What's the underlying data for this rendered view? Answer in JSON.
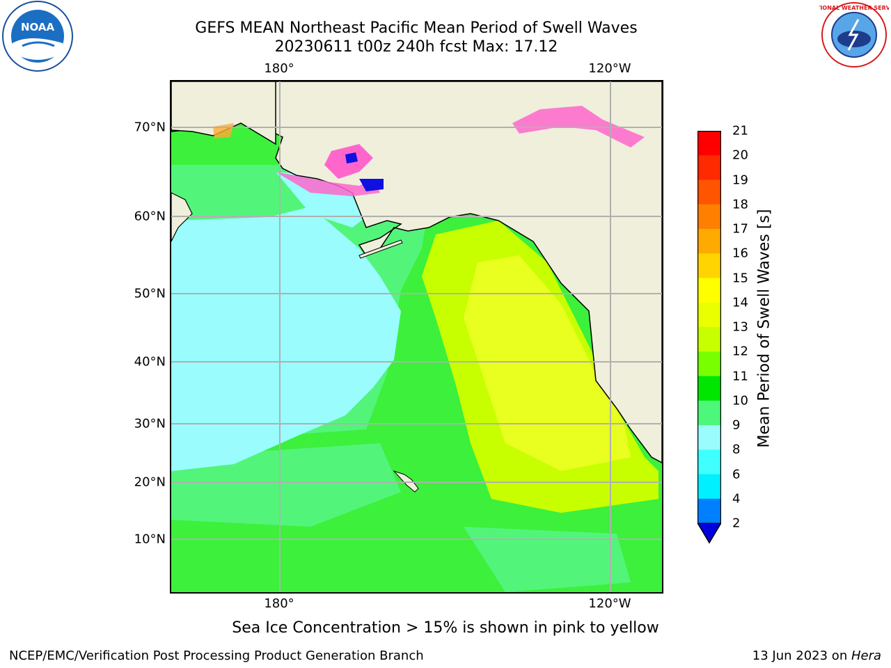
{
  "header": {
    "title_line1": "GEFS MEAN Northeast Pacific Mean Period of Swell Waves",
    "title_line2": "20230611 t00z 240h fcst   Max: 17.12"
  },
  "map": {
    "lon_labels": [
      "180°",
      "120°W"
    ],
    "lat_labels": [
      "70°N",
      "60°N",
      "50°N",
      "40°N",
      "30°N",
      "20°N",
      "10°N"
    ],
    "colors": {
      "land": "#efefdc",
      "ocean_green": "#3cf03c",
      "ocean_light_green": "#52f57a",
      "ocean_cyan": "#9afcfc",
      "ocean_yellow": "#e8ff20",
      "ice_pink": "#ff66cc",
      "gridline": "#b0b0b0",
      "coastline": "#000000"
    }
  },
  "colorbar": {
    "label": "Mean Period of Swell Waves [s]",
    "ticks": [
      "21",
      "20",
      "19",
      "18",
      "17",
      "16",
      "15",
      "14",
      "13",
      "12",
      "11",
      "10",
      "9",
      "8",
      "6",
      "4",
      "2"
    ],
    "colors": [
      "#ff0000",
      "#ff2a00",
      "#ff5500",
      "#ff8000",
      "#ffaa00",
      "#ffd400",
      "#ffff00",
      "#eaff00",
      "#c8ff00",
      "#78ff00",
      "#00e600",
      "#4cf77a",
      "#9afcfc",
      "#40ffff",
      "#00f0ff",
      "#0080ff",
      "#0000e0"
    ]
  },
  "footer": {
    "caption": "Sea Ice Concentration > 15% is shown in pink to yellow",
    "left": "NCEP/EMC/Verification Post Processing Product Generation Branch",
    "right_date": "13 Jun 2023 on ",
    "right_host": "Hera"
  },
  "logos": {
    "noaa": "NOAA",
    "nws": "NATIONAL WEATHER SERVICE"
  }
}
